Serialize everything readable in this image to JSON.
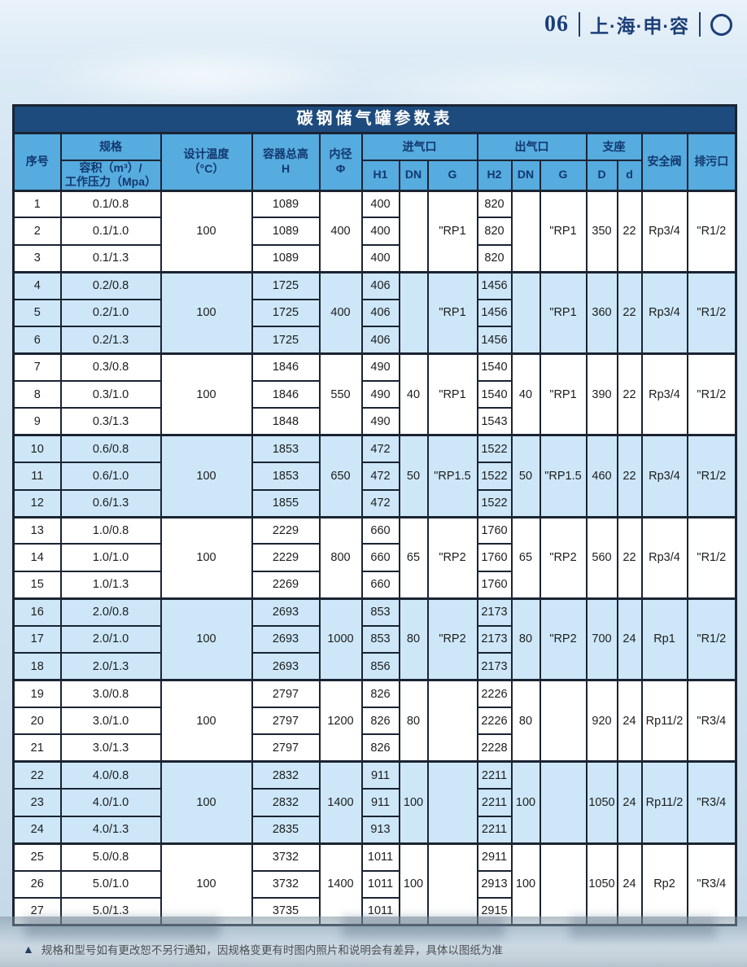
{
  "colors": {
    "brand_navy": "#1c3e78",
    "title_bg": "#1e4b7d",
    "header_bg": "#56abdf",
    "header_text": "#12386d",
    "band_blue": "#cde7f8",
    "border": "#1b2433"
  },
  "page": {
    "page_number": "06",
    "brand": "上·海·申·容",
    "footer_note": "规格和型号如有更改恕不另行通知，因规格变更有时图内照片和说明会有差异，具体以图纸为准"
  },
  "table": {
    "title": "碳钢储气罐参数表",
    "headers": {
      "no": "序号",
      "spec": "规格",
      "spec_sub": "容积（m³）/\n工作压力（Mpa）",
      "design_temp": "设计温度\n（°C）",
      "total_height": "容器总高\nH",
      "inner_diameter": "内径\nΦ",
      "inlet": "进气口",
      "outlet": "出气口",
      "support": "支座",
      "h1": "H1",
      "dn": "DN",
      "g": "G",
      "h2": "H2",
      "d_upper": "D",
      "d_lower": "d",
      "safety_valve": "安全阀",
      "drain": "排污口"
    },
    "groups": [
      {
        "temp": "100",
        "phi": "400",
        "dn_in": "",
        "g_in": "\"RP1",
        "dn_out": "",
        "g_out": "\"RP1",
        "D": "350",
        "d": "22",
        "valve": "Rp3/4",
        "drain": "\"R1/2",
        "rows": [
          {
            "no": "1",
            "spec": "0.1/0.8",
            "H": "1089",
            "H1": "400",
            "H2": "820"
          },
          {
            "no": "2",
            "spec": "0.1/1.0",
            "H": "1089",
            "H1": "400",
            "H2": "820"
          },
          {
            "no": "3",
            "spec": "0.1/1.3",
            "H": "1089",
            "H1": "400",
            "H2": "820"
          }
        ]
      },
      {
        "temp": "100",
        "phi": "400",
        "dn_in": "",
        "g_in": "\"RP1",
        "dn_out": "",
        "g_out": "\"RP1",
        "D": "360",
        "d": "22",
        "valve": "Rp3/4",
        "drain": "\"R1/2",
        "rows": [
          {
            "no": "4",
            "spec": "0.2/0.8",
            "H": "1725",
            "H1": "406",
            "H2": "1456"
          },
          {
            "no": "5",
            "spec": "0.2/1.0",
            "H": "1725",
            "H1": "406",
            "H2": "1456"
          },
          {
            "no": "6",
            "spec": "0.2/1.3",
            "H": "1725",
            "H1": "406",
            "H2": "1456"
          }
        ]
      },
      {
        "temp": "100",
        "phi": "550",
        "dn_in": "40",
        "g_in": "\"RP1",
        "dn_out": "40",
        "g_out": "\"RP1",
        "D": "390",
        "d": "22",
        "valve": "Rp3/4",
        "drain": "\"R1/2",
        "rows": [
          {
            "no": "7",
            "spec": "0.3/0.8",
            "H": "1846",
            "H1": "490",
            "H2": "1540"
          },
          {
            "no": "8",
            "spec": "0.3/1.0",
            "H": "1846",
            "H1": "490",
            "H2": "1540"
          },
          {
            "no": "9",
            "spec": "0.3/1.3",
            "H": "1848",
            "H1": "490",
            "H2": "1543"
          }
        ]
      },
      {
        "temp": "100",
        "phi": "650",
        "dn_in": "50",
        "g_in": "\"RP1.5",
        "dn_out": "50",
        "g_out": "\"RP1.5",
        "D": "460",
        "d": "22",
        "valve": "Rp3/4",
        "drain": "\"R1/2",
        "rows": [
          {
            "no": "10",
            "spec": "0.6/0.8",
            "H": "1853",
            "H1": "472",
            "H2": "1522"
          },
          {
            "no": "11",
            "spec": "0.6/1.0",
            "H": "1853",
            "H1": "472",
            "H2": "1522"
          },
          {
            "no": "12",
            "spec": "0.6/1.3",
            "H": "1855",
            "H1": "472",
            "H2": "1522"
          }
        ]
      },
      {
        "temp": "100",
        "phi": "800",
        "dn_in": "65",
        "g_in": "\"RP2",
        "dn_out": "65",
        "g_out": "\"RP2",
        "D": "560",
        "d": "22",
        "valve": "Rp3/4",
        "drain": "\"R1/2",
        "rows": [
          {
            "no": "13",
            "spec": "1.0/0.8",
            "H": "2229",
            "H1": "660",
            "H2": "1760"
          },
          {
            "no": "14",
            "spec": "1.0/1.0",
            "H": "2229",
            "H1": "660",
            "H2": "1760"
          },
          {
            "no": "15",
            "spec": "1.0/1.3",
            "H": "2269",
            "H1": "660",
            "H2": "1760"
          }
        ]
      },
      {
        "temp": "100",
        "phi": "1000",
        "dn_in": "80",
        "g_in": "\"RP2",
        "dn_out": "80",
        "g_out": "\"RP2",
        "D": "700",
        "d": "24",
        "valve": "Rp1",
        "drain": "\"R1/2",
        "rows": [
          {
            "no": "16",
            "spec": "2.0/0.8",
            "H": "2693",
            "H1": "853",
            "H2": "2173"
          },
          {
            "no": "17",
            "spec": "2.0/1.0",
            "H": "2693",
            "H1": "853",
            "H2": "2173"
          },
          {
            "no": "18",
            "spec": "2.0/1.3",
            "H": "2693",
            "H1": "856",
            "H2": "2173"
          }
        ]
      },
      {
        "temp": "100",
        "phi": "1200",
        "dn_in": "80",
        "g_in": "",
        "dn_out": "80",
        "g_out": "",
        "D": "920",
        "d": "24",
        "valve": "Rp11/2",
        "drain": "\"R3/4",
        "rows": [
          {
            "no": "19",
            "spec": "3.0/0.8",
            "H": "2797",
            "H1": "826",
            "H2": "2226"
          },
          {
            "no": "20",
            "spec": "3.0/1.0",
            "H": "2797",
            "H1": "826",
            "H2": "2226"
          },
          {
            "no": "21",
            "spec": "3.0/1.3",
            "H": "2797",
            "H1": "826",
            "H2": "2228"
          }
        ]
      },
      {
        "temp": "100",
        "phi": "1400",
        "dn_in": "100",
        "g_in": "",
        "dn_out": "100",
        "g_out": "",
        "D": "1050",
        "d": "24",
        "valve": "Rp11/2",
        "drain": "\"R3/4",
        "rows": [
          {
            "no": "22",
            "spec": "4.0/0.8",
            "H": "2832",
            "H1": "911",
            "H2": "2211"
          },
          {
            "no": "23",
            "spec": "4.0/1.0",
            "H": "2832",
            "H1": "911",
            "H2": "2211"
          },
          {
            "no": "24",
            "spec": "4.0/1.3",
            "H": "2835",
            "H1": "913",
            "H2": "2211"
          }
        ]
      },
      {
        "temp": "100",
        "phi": "1400",
        "dn_in": "100",
        "g_in": "",
        "dn_out": "100",
        "g_out": "",
        "D": "1050",
        "d": "24",
        "valve": "Rp2",
        "drain": "\"R3/4",
        "rows": [
          {
            "no": "25",
            "spec": "5.0/0.8",
            "H": "3732",
            "H1": "1011",
            "H2": "2911"
          },
          {
            "no": "26",
            "spec": "5.0/1.0",
            "H": "3732",
            "H1": "1011",
            "H2": "2913"
          },
          {
            "no": "27",
            "spec": "5.0/1.3",
            "H": "3735",
            "H1": "1011",
            "H2": "2915"
          }
        ]
      }
    ]
  }
}
